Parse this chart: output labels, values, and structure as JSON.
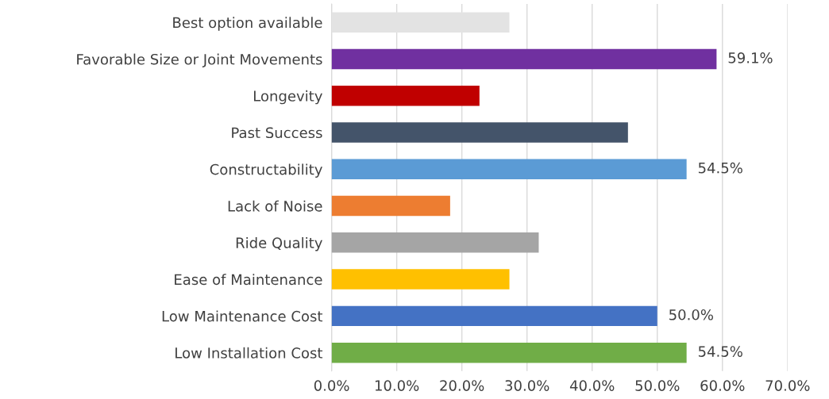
{
  "chart_data": {
    "type": "bar",
    "orientation": "horizontal",
    "categories": [
      "Best option available",
      "Favorable Size or Joint Movements",
      "Longevity",
      "Past Success",
      "Constructability",
      "Lack of Noise",
      "Ride Quality",
      "Ease of Maintenance",
      "Low Maintenance Cost",
      "Low Installation Cost"
    ],
    "values": [
      27.3,
      59.1,
      22.7,
      45.5,
      54.5,
      18.2,
      31.8,
      27.3,
      50.0,
      54.5
    ],
    "colors": [
      "#e3e3e3",
      "#7030a0",
      "#c00000",
      "#44546a",
      "#5b9bd5",
      "#ed7d31",
      "#a5a5a5",
      "#ffc000",
      "#4472c4",
      "#70ad47"
    ],
    "value_labels": [
      null,
      "59.1%",
      null,
      null,
      "54.5%",
      null,
      null,
      null,
      "50.0%",
      "54.5%"
    ],
    "xlim": [
      0,
      70
    ],
    "xticks": [
      {
        "value": 0,
        "label": "0.0%"
      },
      {
        "value": 10,
        "label": "10.0%"
      },
      {
        "value": 20,
        "label": "20.0%"
      },
      {
        "value": 30,
        "label": "30.0%"
      },
      {
        "value": 40,
        "label": "40.0%"
      },
      {
        "value": 50,
        "label": "50.0%"
      },
      {
        "value": 60,
        "label": "60.0%"
      },
      {
        "value": 70,
        "label": "70.0%"
      }
    ],
    "grid": "x",
    "legend": false
  }
}
